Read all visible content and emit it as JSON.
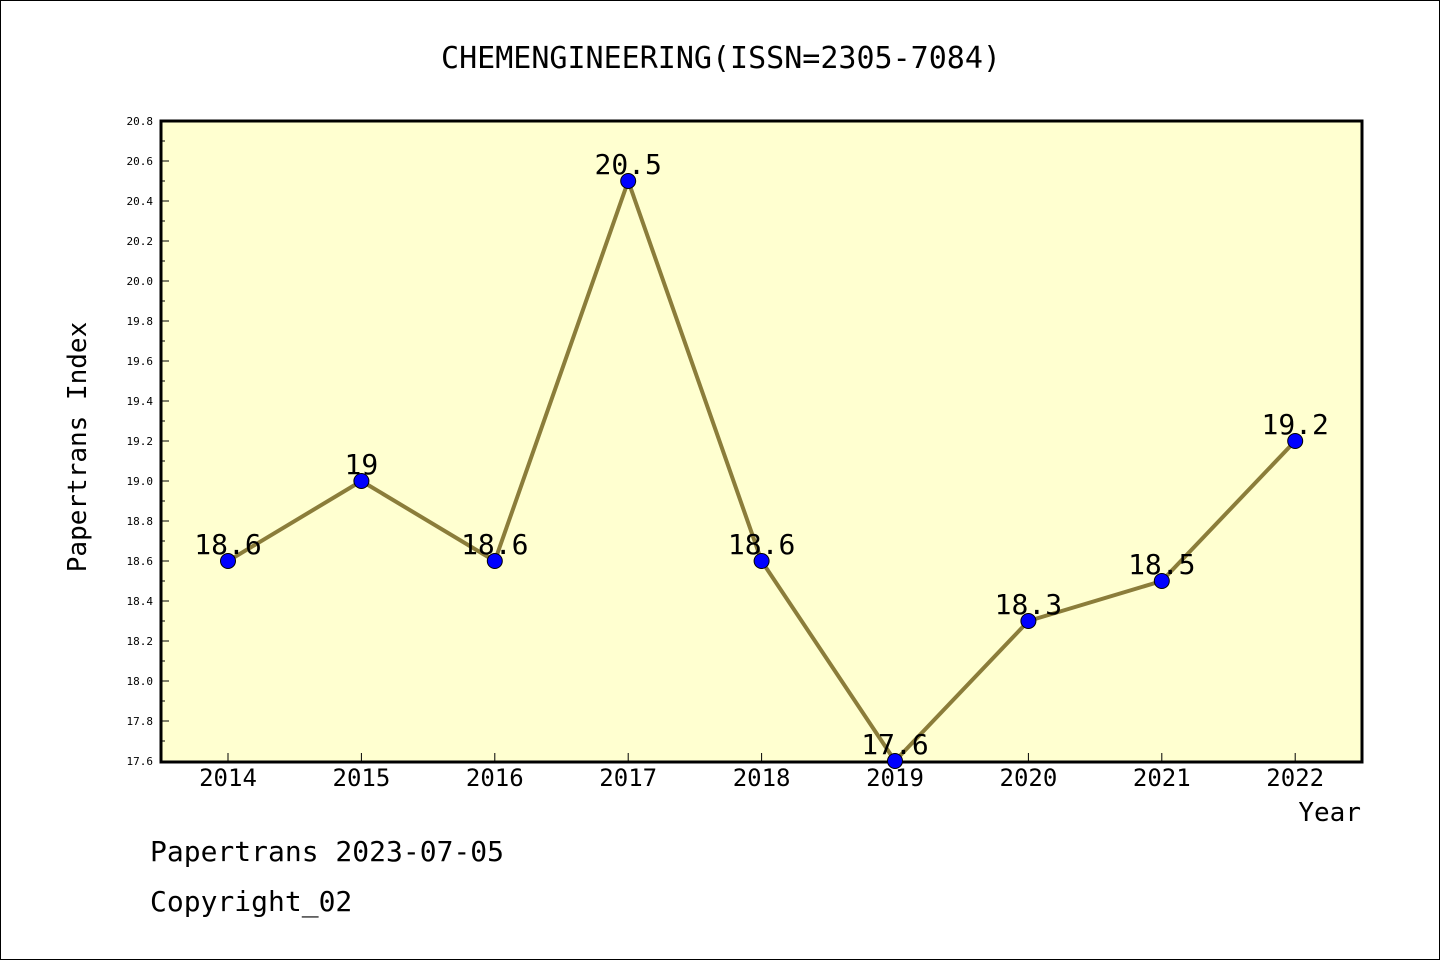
{
  "chart_data": {
    "type": "line",
    "title": "CHEMENGINEERING(ISSN=2305-7084)",
    "xlabel": "Year",
    "ylabel": "Papertrans Index",
    "x": [
      "2014",
      "2015",
      "2016",
      "2017",
      "2018",
      "2019",
      "2020",
      "2021",
      "2022"
    ],
    "series": [
      {
        "values": [
          18.6,
          19,
          18.6,
          20.5,
          18.6,
          17.6,
          18.3,
          18.5,
          19.2
        ],
        "labels": [
          "18.6",
          "19",
          "18.6",
          "20.5",
          "18.6",
          "17.6",
          "18.3",
          "18.5",
          "19.2"
        ]
      }
    ],
    "ylim": [
      17.6,
      20.8
    ],
    "y_ticks": [
      "17.6",
      "17.8",
      "18.0",
      "18.2",
      "18.4",
      "18.6",
      "18.8",
      "19.0",
      "19.2",
      "19.4",
      "19.6",
      "19.8",
      "20.0",
      "20.2",
      "20.4",
      "20.6",
      "20.8"
    ],
    "grid": false,
    "legend": "none",
    "colors": {
      "plot_background": "#ffffd0",
      "line": "#8b7d3a",
      "marker": "#0000ff"
    }
  },
  "footer": {
    "line1": "Papertrans 2023-07-05",
    "line2": "Copyright_02"
  }
}
